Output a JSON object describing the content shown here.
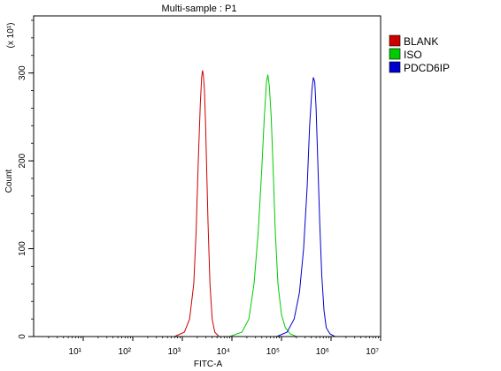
{
  "chart_data": {
    "type": "line",
    "title": "Multi-sample : P1",
    "xlabel": "FITC-A",
    "ylabel": "Count",
    "y_multiplier_label": "(x 10¹)",
    "x_scale": "log",
    "xlim": [
      1,
      10000000
    ],
    "ylim": [
      0,
      365
    ],
    "x_ticks": [
      10,
      100,
      1000,
      10000,
      100000,
      1000000,
      10000000
    ],
    "x_tick_labels": [
      "10¹",
      "10²",
      "10³",
      "10⁴",
      "10⁵",
      "10⁶",
      "10⁷"
    ],
    "y_ticks": [
      0,
      100,
      200,
      300
    ],
    "y_tick_labels": [
      "0",
      "100",
      "200",
      "300"
    ],
    "legend_position": "top-right",
    "grid": false,
    "series": [
      {
        "name": "BLANK",
        "color": "#cc0000",
        "x": [
          700,
          1100,
          1400,
          1700,
          1900,
          2100,
          2300,
          2450,
          2550,
          2650,
          2800,
          2950,
          3100,
          3300,
          3600,
          4000,
          4500,
          5500
        ],
        "y": [
          0,
          5,
          20,
          60,
          120,
          200,
          265,
          295,
          303,
          298,
          280,
          240,
          190,
          130,
          60,
          20,
          5,
          0
        ]
      },
      {
        "name": "ISO",
        "color": "#00cc00",
        "x": [
          9000,
          16000,
          22000,
          28000,
          34000,
          40000,
          45000,
          50000,
          53000,
          57000,
          62000,
          68000,
          75000,
          85000,
          100000,
          120000,
          150000,
          200000
        ],
        "y": [
          0,
          5,
          20,
          60,
          120,
          190,
          250,
          290,
          298,
          285,
          250,
          190,
          120,
          60,
          25,
          10,
          3,
          0
        ]
      },
      {
        "name": "PDCD6IP",
        "color": "#0000cc",
        "x": [
          80000,
          130000,
          180000,
          230000,
          280000,
          330000,
          370000,
          410000,
          440000,
          470000,
          500000,
          540000,
          590000,
          650000,
          720000,
          800000,
          950000,
          1200000
        ],
        "y": [
          0,
          5,
          20,
          50,
          100,
          170,
          240,
          280,
          295,
          290,
          260,
          200,
          130,
          70,
          30,
          10,
          3,
          0
        ]
      }
    ]
  }
}
